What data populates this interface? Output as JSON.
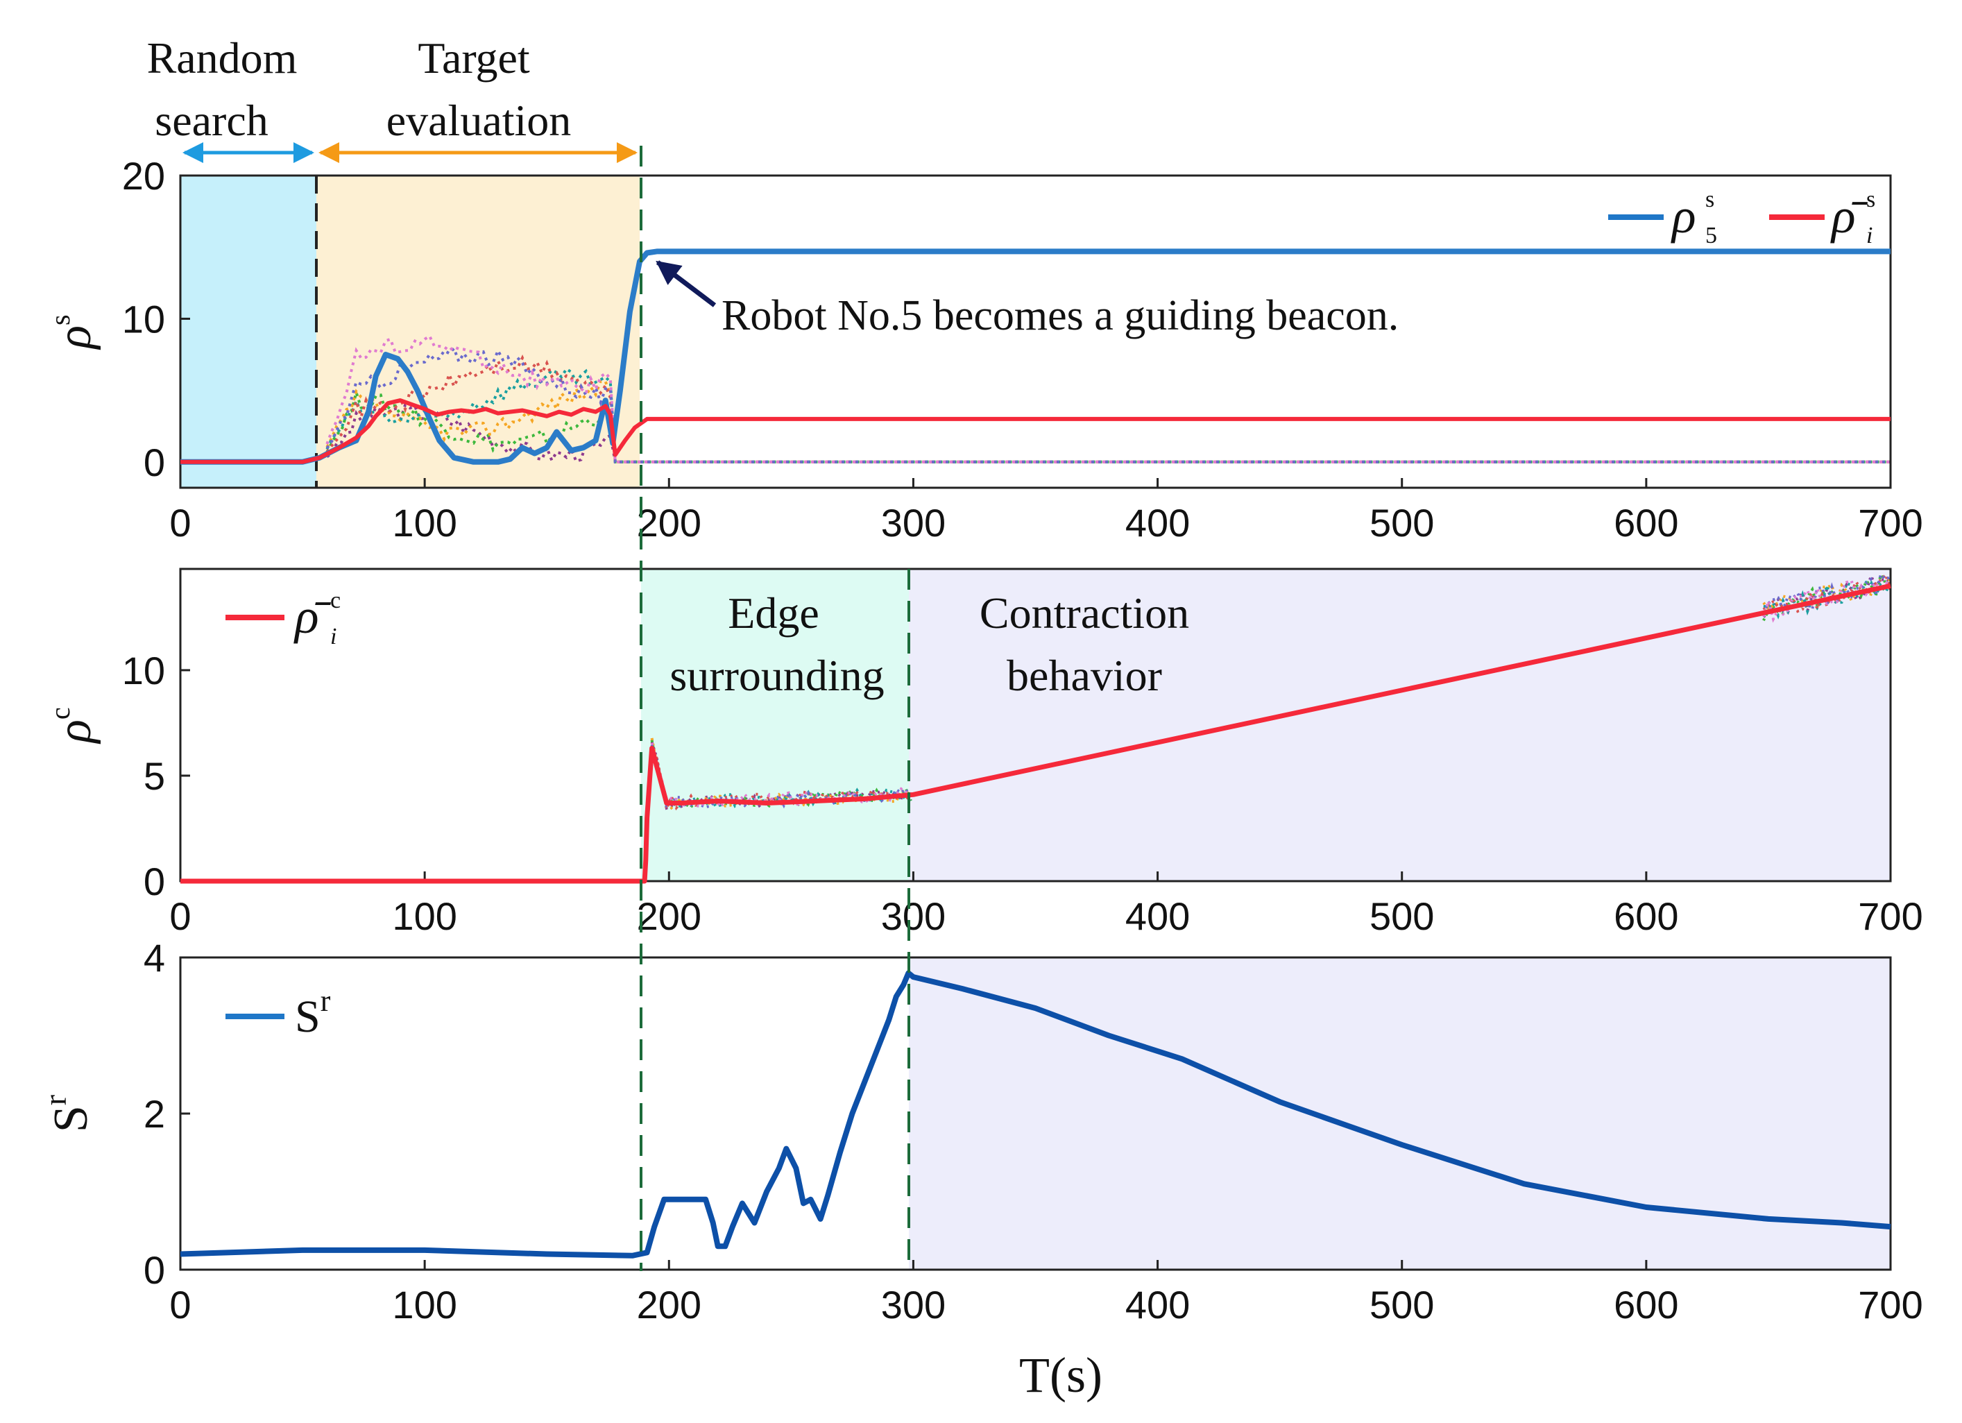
{
  "chart_data": [
    {
      "type": "line",
      "panel": "top",
      "ylabel": "ρ",
      "ylabel_sup": "s",
      "xlim": [
        0,
        700
      ],
      "ylim": [
        -1.8,
        20
      ],
      "xticks": [
        "0",
        "100",
        "200",
        "300",
        "400",
        "500",
        "600",
        "700"
      ],
      "yticks": [
        "0",
        "10",
        "20"
      ],
      "regions": [
        {
          "x0": 0,
          "x1": 57,
          "color": "#c6f0fb",
          "label": [
            "Random",
            "search"
          ]
        },
        {
          "x0": 57,
          "x1": 191,
          "color": "#fdf0d3",
          "label": [
            "Target",
            "evaluation"
          ]
        }
      ],
      "annotation": "Robot No.5 becomes a guiding beacon.",
      "legend": [
        {
          "symbol": "ρ",
          "sub": "5",
          "sup": "s",
          "color": "#1f77c8"
        },
        {
          "symbol": "ρ̄",
          "sub": "i",
          "sup": "s",
          "color": "#f5293a"
        }
      ],
      "series": [
        {
          "name": "rho_5_s",
          "color": "#2b7cc8",
          "x": [
            0,
            50,
            57,
            65,
            72,
            77,
            80,
            84,
            89,
            93,
            97,
            102,
            106,
            112,
            120,
            130,
            135,
            140,
            145,
            150,
            154,
            160,
            165,
            170,
            174,
            177,
            180,
            184,
            188,
            191,
            195,
            700
          ],
          "y": [
            0,
            0,
            0.3,
            1.0,
            1.5,
            3.5,
            6.0,
            7.5,
            7.2,
            6.3,
            5.0,
            3.0,
            1.5,
            0.3,
            0.0,
            0.0,
            0.2,
            1.0,
            0.6,
            1.0,
            2.1,
            0.8,
            1.0,
            1.5,
            4.3,
            1.3,
            5.0,
            10.5,
            14.0,
            14.6,
            14.7,
            14.7
          ]
        },
        {
          "name": "rho_bar_i_s",
          "color": "#f5293a",
          "x": [
            0,
            50,
            57,
            65,
            72,
            77,
            80,
            85,
            90,
            95,
            100,
            105,
            110,
            115,
            120,
            125,
            130,
            140,
            150,
            155,
            160,
            165,
            170,
            174,
            176,
            178,
            182,
            186,
            191,
            700
          ],
          "y": [
            0,
            0,
            0.3,
            1.0,
            1.7,
            2.5,
            3.2,
            4.1,
            4.3,
            4.0,
            3.7,
            3.3,
            3.5,
            3.6,
            3.5,
            3.7,
            3.4,
            3.6,
            3.2,
            3.5,
            3.3,
            3.7,
            3.5,
            3.9,
            3.3,
            0.5,
            1.5,
            2.4,
            3.0,
            3.0
          ]
        }
      ]
    },
    {
      "type": "line",
      "panel": "middle",
      "ylabel": "ρ",
      "ylabel_sup": "c",
      "xlim": [
        0,
        700
      ],
      "ylim": [
        0,
        14.8
      ],
      "xticks": [
        "0",
        "100",
        "200",
        "300",
        "400",
        "500",
        "600",
        "700"
      ],
      "yticks": [
        "0",
        "5",
        "10"
      ],
      "regions": [
        {
          "x0": 191,
          "x1": 300,
          "color": "#ddfbf3",
          "label": [
            "Edge",
            "surrounding"
          ]
        },
        {
          "x0": 300,
          "x1": 700,
          "color": "#ededfb",
          "label": [
            "Contraction",
            "behavior"
          ]
        }
      ],
      "legend": [
        {
          "symbol": "ρ̄",
          "sub": "i",
          "sup": "c",
          "color": "#f5293a"
        }
      ],
      "series": [
        {
          "name": "rho_bar_i_c",
          "color": "#f5293a",
          "x": [
            0,
            190,
            190.5,
            191,
            193,
            196,
            199,
            205,
            220,
            240,
            260,
            280,
            300,
            700
          ],
          "y": [
            0,
            0,
            1.0,
            3.0,
            6.3,
            5.0,
            3.7,
            3.7,
            3.8,
            3.7,
            3.8,
            3.9,
            4.1,
            14.0
          ]
        }
      ]
    },
    {
      "type": "line",
      "panel": "bottom",
      "ylabel": "S",
      "ylabel_sup": "r",
      "xlabel": "T(s)",
      "xlim": [
        0,
        700
      ],
      "ylim": [
        0,
        4
      ],
      "xticks": [
        "0",
        "100",
        "200",
        "300",
        "400",
        "500",
        "600",
        "700"
      ],
      "yticks": [
        "0",
        "2",
        "4"
      ],
      "regions": [
        {
          "x0": 300,
          "x1": 700,
          "color": "#ededfb",
          "label": null
        }
      ],
      "legend": [
        {
          "symbol": "S",
          "sub": "",
          "sup": "r",
          "color": "#1f77c8"
        }
      ],
      "series": [
        {
          "name": "S_r",
          "color": "#0d50a8",
          "x": [
            0,
            50,
            100,
            150,
            185,
            191,
            194,
            198,
            205,
            215,
            218,
            220,
            223,
            226,
            230,
            235,
            240,
            245,
            248,
            252,
            255,
            258,
            262,
            265,
            270,
            275,
            280,
            285,
            290,
            293,
            296,
            298,
            300,
            320,
            350,
            380,
            410,
            450,
            500,
            550,
            600,
            650,
            680,
            700
          ],
          "y": [
            0.2,
            0.25,
            0.25,
            0.2,
            0.18,
            0.22,
            0.55,
            0.9,
            0.9,
            0.9,
            0.6,
            0.3,
            0.3,
            0.55,
            0.85,
            0.6,
            1.0,
            1.3,
            1.55,
            1.3,
            0.85,
            0.9,
            0.65,
            0.95,
            1.5,
            2.0,
            2.4,
            2.8,
            3.2,
            3.5,
            3.65,
            3.8,
            3.75,
            3.6,
            3.35,
            3.0,
            2.7,
            2.15,
            1.6,
            1.1,
            0.8,
            0.65,
            0.6,
            0.55
          ]
        }
      ]
    }
  ]
}
